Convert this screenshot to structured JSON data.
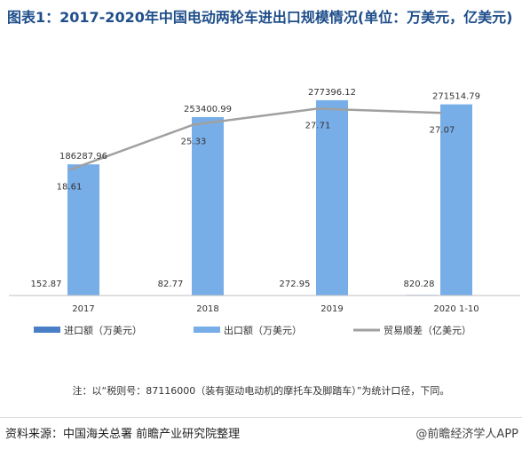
{
  "title": "图表1：2017-2020年中国电动两轮车进出口规模情况(单位：万美元，亿美元)",
  "note": "注：以“税则号：87116000（装有驱动电动机的摩托车及脚踏车）”为统计口径，下同。",
  "source": "资料来源：中国海关总署 前瞻产业研究院整理",
  "brand": "@前瞻经济学人APP",
  "colors": {
    "import": "#4a7fc8",
    "export": "#78aee8",
    "balance": "#a0a0a0",
    "title": "#1f4e8a"
  },
  "chart_data": {
    "type": "bar",
    "categories": [
      "2017",
      "2018",
      "2019",
      "2020 1-10"
    ],
    "series": [
      {
        "name": "进口额（万美元）",
        "kind": "bar",
        "values": [
          152.87,
          82.77,
          272.95,
          820.28
        ]
      },
      {
        "name": "出口额（万美元）",
        "kind": "bar",
        "values": [
          186287.96,
          253400.99,
          277396.12,
          271514.79
        ]
      },
      {
        "name": "贸易顺差（亿美元）",
        "kind": "line",
        "values": [
          18.61,
          25.33,
          27.71,
          27.07
        ]
      }
    ],
    "ylim_bar": [
      0,
      300000
    ],
    "ylim_line": [
      0,
      30
    ],
    "legend": "bottom"
  }
}
